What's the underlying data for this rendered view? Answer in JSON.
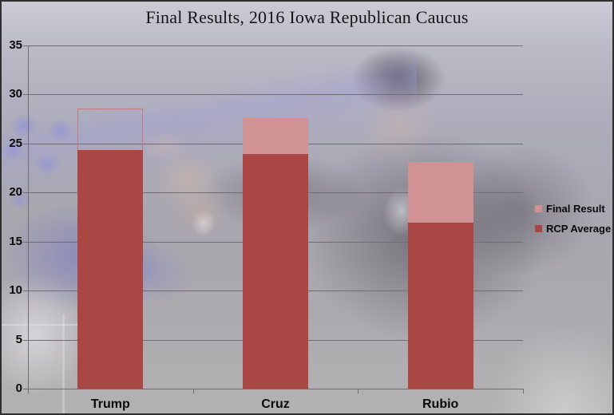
{
  "chart_data": {
    "type": "bar",
    "title": "Final Results, 2016 Iowa Republican Caucus",
    "categories": [
      "Trump",
      "Cruz",
      "Rubio"
    ],
    "series": [
      {
        "name": "Final Result",
        "color": "#d09294",
        "values": [
          28.6,
          27.6,
          23.1
        ],
        "fill_styles": [
          "outline",
          "fill",
          "fill"
        ],
        "outline_color": "#c67a7f"
      },
      {
        "name": "RCP Average",
        "color": "#aa4745",
        "values": [
          24.3,
          23.9,
          16.9
        ],
        "fill_styles": [
          "fill",
          "fill",
          "fill"
        ],
        "outline_color": "#aa4745"
      }
    ],
    "ylim": [
      0,
      35
    ],
    "yticks": [
      0,
      5,
      10,
      15,
      20,
      25,
      30,
      35
    ],
    "grid": true,
    "legend_position": "right-middle",
    "background": "semi-transparent photo of Ted Cruz pointing, washed out with gray-lavender overlay",
    "notes": "Trump back bar (28.6) is drawn as an unfilled outline so the backdrop photo shows through; front dark-red bars overlap the lighter pink back bars"
  }
}
